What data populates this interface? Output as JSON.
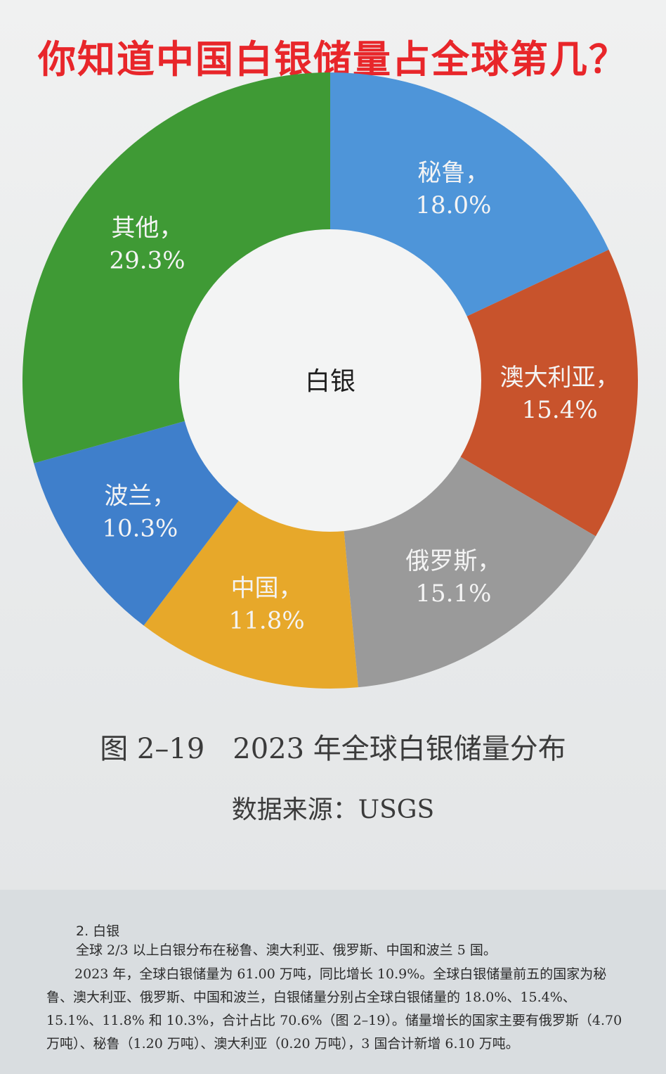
{
  "headline": "你知道中国白银储量占全球第几？",
  "chart_data": {
    "type": "pie",
    "donut": true,
    "center_label": "白银",
    "slices": [
      {
        "name": "秘鲁",
        "value": 18.0,
        "label": "18.0%",
        "color": "#4e95d9"
      },
      {
        "name": "澳大利亚",
        "value": 15.4,
        "label": "15.4%",
        "color": "#c8532c"
      },
      {
        "name": "俄罗斯",
        "value": 15.1,
        "label": "15.1%",
        "color": "#9a9a9a"
      },
      {
        "name": "中国",
        "value": 11.8,
        "label": "11.8%",
        "color": "#e7a82a"
      },
      {
        "name": "波兰",
        "value": 10.3,
        "label": "10.3%",
        "color": "#3f7fcb"
      },
      {
        "name": "其他",
        "value": 29.3,
        "label": "29.3%",
        "color": "#3f9a35"
      }
    ],
    "start_angle_deg": 0,
    "direction": "clockwise"
  },
  "caption": {
    "figure": "图 2–19　2023 年全球白银储量分布",
    "source": "数据来源：USGS"
  },
  "body_text": {
    "section_title": "2. 白银",
    "para1": "全球 2/3 以上白银分布在秘鲁、澳大利亚、俄罗斯、中国和波兰 5 国。",
    "para2": "2023 年，全球白银储量为 61.00 万吨，同比增长 10.9%。全球白银储量前五的国家为秘鲁、澳大利亚、俄罗斯、中国和波兰，白银储量分别占全球白银储量的 18.0%、15.4%、15.1%、11.8% 和 10.3%，合计占比 70.6%（图 2–19）。储量增长的国家主要有俄罗斯（4.70 万吨）、秘鲁（1.20 万吨）、澳大利亚（0.20 万吨），3 国合计新增 6.10 万吨。"
  }
}
